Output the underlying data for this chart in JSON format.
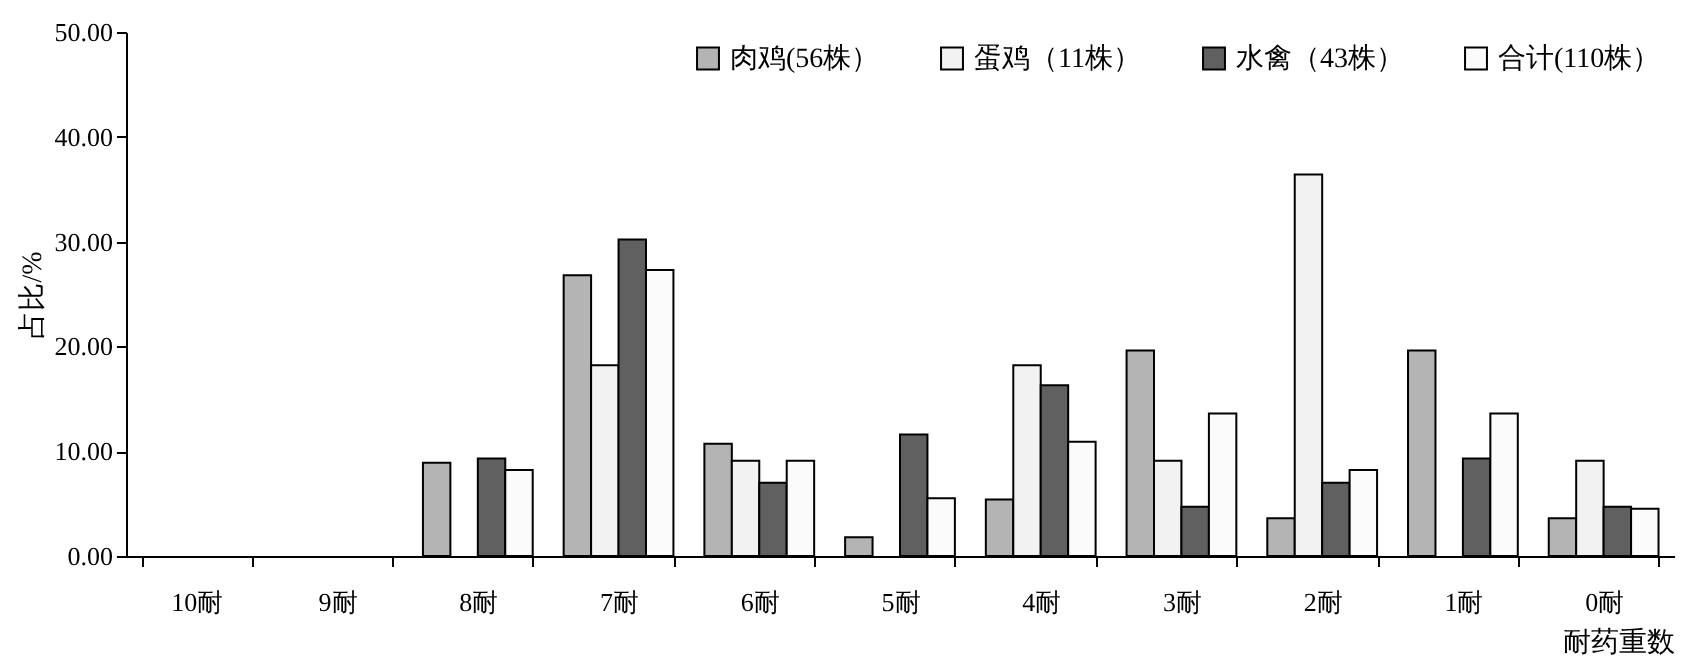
{
  "chart_data": {
    "type": "bar",
    "ylabel": "占比/%",
    "xlabel": "耐药重数",
    "categories": [
      "10耐",
      "9耐",
      "8耐",
      "7耐",
      "6耐",
      "5耐",
      "4耐",
      "3耐",
      "2耐",
      "1耐",
      "0耐"
    ],
    "series": [
      {
        "name": "肉鸡(56株）",
        "color": "#b4b4b4",
        "values": [
          0,
          0,
          8.9,
          26.8,
          10.7,
          1.8,
          5.4,
          19.6,
          3.6,
          19.6,
          3.6
        ]
      },
      {
        "name": "蛋鸡（11株）",
        "color": "#f2f2f2",
        "values": [
          0,
          0,
          0,
          18.2,
          9.1,
          0,
          18.2,
          9.1,
          36.4,
          0,
          9.1
        ]
      },
      {
        "name": "水禽（43株）",
        "color": "#606060",
        "values": [
          0,
          0,
          9.3,
          30.2,
          7.0,
          11.6,
          16.3,
          4.7,
          7.0,
          9.3,
          4.7
        ]
      },
      {
        "name": "合计(110株）",
        "color": "#fbfbfb",
        "values": [
          0,
          0,
          8.2,
          27.3,
          9.1,
          5.5,
          10.9,
          13.6,
          8.2,
          13.6,
          4.5
        ]
      }
    ],
    "ylim": [
      0,
      50
    ],
    "yticks": [
      {
        "value": 0,
        "label": "0.00"
      },
      {
        "value": 10,
        "label": "10.00"
      },
      {
        "value": 20,
        "label": "20.00"
      },
      {
        "value": 30,
        "label": "30.00"
      },
      {
        "value": 40,
        "label": "40.00"
      },
      {
        "value": 50,
        "label": "50.00"
      }
    ],
    "grid": false,
    "legend": "top right"
  }
}
